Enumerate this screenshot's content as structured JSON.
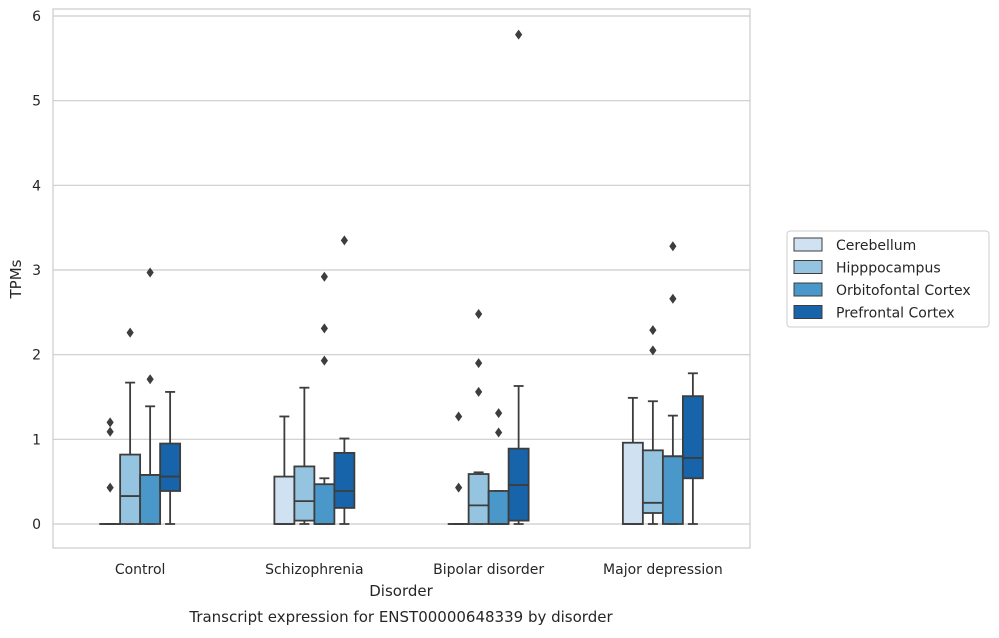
{
  "chart_data": {
    "type": "box",
    "title": "",
    "caption": "Transcript expression for ENST00000648339 by disorder",
    "xlabel": "Disorder",
    "ylabel": "TPMs",
    "ylim": [
      -0.28,
      6.05
    ],
    "yticks": [
      0,
      1,
      2,
      3,
      4,
      5,
      6
    ],
    "grid": "horizontal",
    "legend_position": "right",
    "categories": [
      "Control",
      "Schizophrenia",
      "Bipolar disorder",
      "Major depression"
    ],
    "series": [
      {
        "name": "Cerebellum",
        "color": "#d0e1f2",
        "boxes": [
          {
            "whislo": 0,
            "q1": 0,
            "med": 0,
            "q3": 0,
            "whishi": 0,
            "fliers": [
              0.43,
              1.09,
              1.2
            ]
          },
          {
            "whislo": 0,
            "q1": 0,
            "med": 0,
            "q3": 0.56,
            "whishi": 1.27,
            "fliers": []
          },
          {
            "whislo": 0,
            "q1": 0,
            "med": 0,
            "q3": 0,
            "whishi": 0,
            "fliers": [
              0.43,
              1.27
            ]
          },
          {
            "whislo": 0,
            "q1": 0,
            "med": 0,
            "q3": 0.96,
            "whishi": 1.49,
            "fliers": []
          }
        ]
      },
      {
        "name": "Hipppocampus",
        "color": "#94c4df",
        "boxes": [
          {
            "whislo": 0,
            "q1": 0,
            "med": 0.33,
            "q3": 0.82,
            "whishi": 1.67,
            "fliers": [
              2.26
            ]
          },
          {
            "whislo": 0,
            "q1": 0.04,
            "med": 0.27,
            "q3": 0.68,
            "whishi": 1.61,
            "fliers": []
          },
          {
            "whislo": 0,
            "q1": 0,
            "med": 0.22,
            "q3": 0.59,
            "whishi": 0.61,
            "fliers": [
              2.48,
              1.9,
              1.56
            ]
          },
          {
            "whislo": 0,
            "q1": 0.13,
            "med": 0.25,
            "q3": 0.87,
            "whishi": 1.45,
            "fliers": [
              2.29,
              2.05
            ]
          }
        ]
      },
      {
        "name": "Orbitofontal Cortex",
        "color": "#4a98c9",
        "boxes": [
          {
            "whislo": 0,
            "q1": 0,
            "med": 0.58,
            "q3": 0.58,
            "whishi": 1.39,
            "fliers": [
              1.71,
              2.97
            ]
          },
          {
            "whislo": 0,
            "q1": 0,
            "med": 0,
            "q3": 0.47,
            "whishi": 0.54,
            "fliers": [
              1.93,
              2.31,
              2.92
            ]
          },
          {
            "whislo": 0,
            "q1": 0,
            "med": 0,
            "q3": 0.39,
            "whishi": 0.39,
            "fliers": [
              1.08,
              1.31
            ]
          },
          {
            "whislo": 0,
            "q1": 0,
            "med": 0.8,
            "q3": 0.8,
            "whishi": 1.28,
            "fliers": [
              2.66,
              3.28
            ]
          }
        ]
      },
      {
        "name": "Prefrontal Cortex",
        "color": "#1764ab",
        "boxes": [
          {
            "whislo": 0,
            "q1": 0.39,
            "med": 0.56,
            "q3": 0.95,
            "whishi": 1.56,
            "fliers": []
          },
          {
            "whislo": 0,
            "q1": 0.19,
            "med": 0.39,
            "q3": 0.84,
            "whishi": 1.01,
            "fliers": [
              3.35
            ]
          },
          {
            "whislo": 0,
            "q1": 0.04,
            "med": 0.46,
            "q3": 0.89,
            "whishi": 1.63,
            "fliers": [
              5.78
            ]
          },
          {
            "whislo": 0,
            "q1": 0.54,
            "med": 0.78,
            "q3": 1.51,
            "whishi": 1.78,
            "fliers": []
          }
        ]
      }
    ]
  },
  "colors": {
    "grid": "#cccccc",
    "spine": "#cccccc",
    "box_edge": "#3d3d3d"
  }
}
